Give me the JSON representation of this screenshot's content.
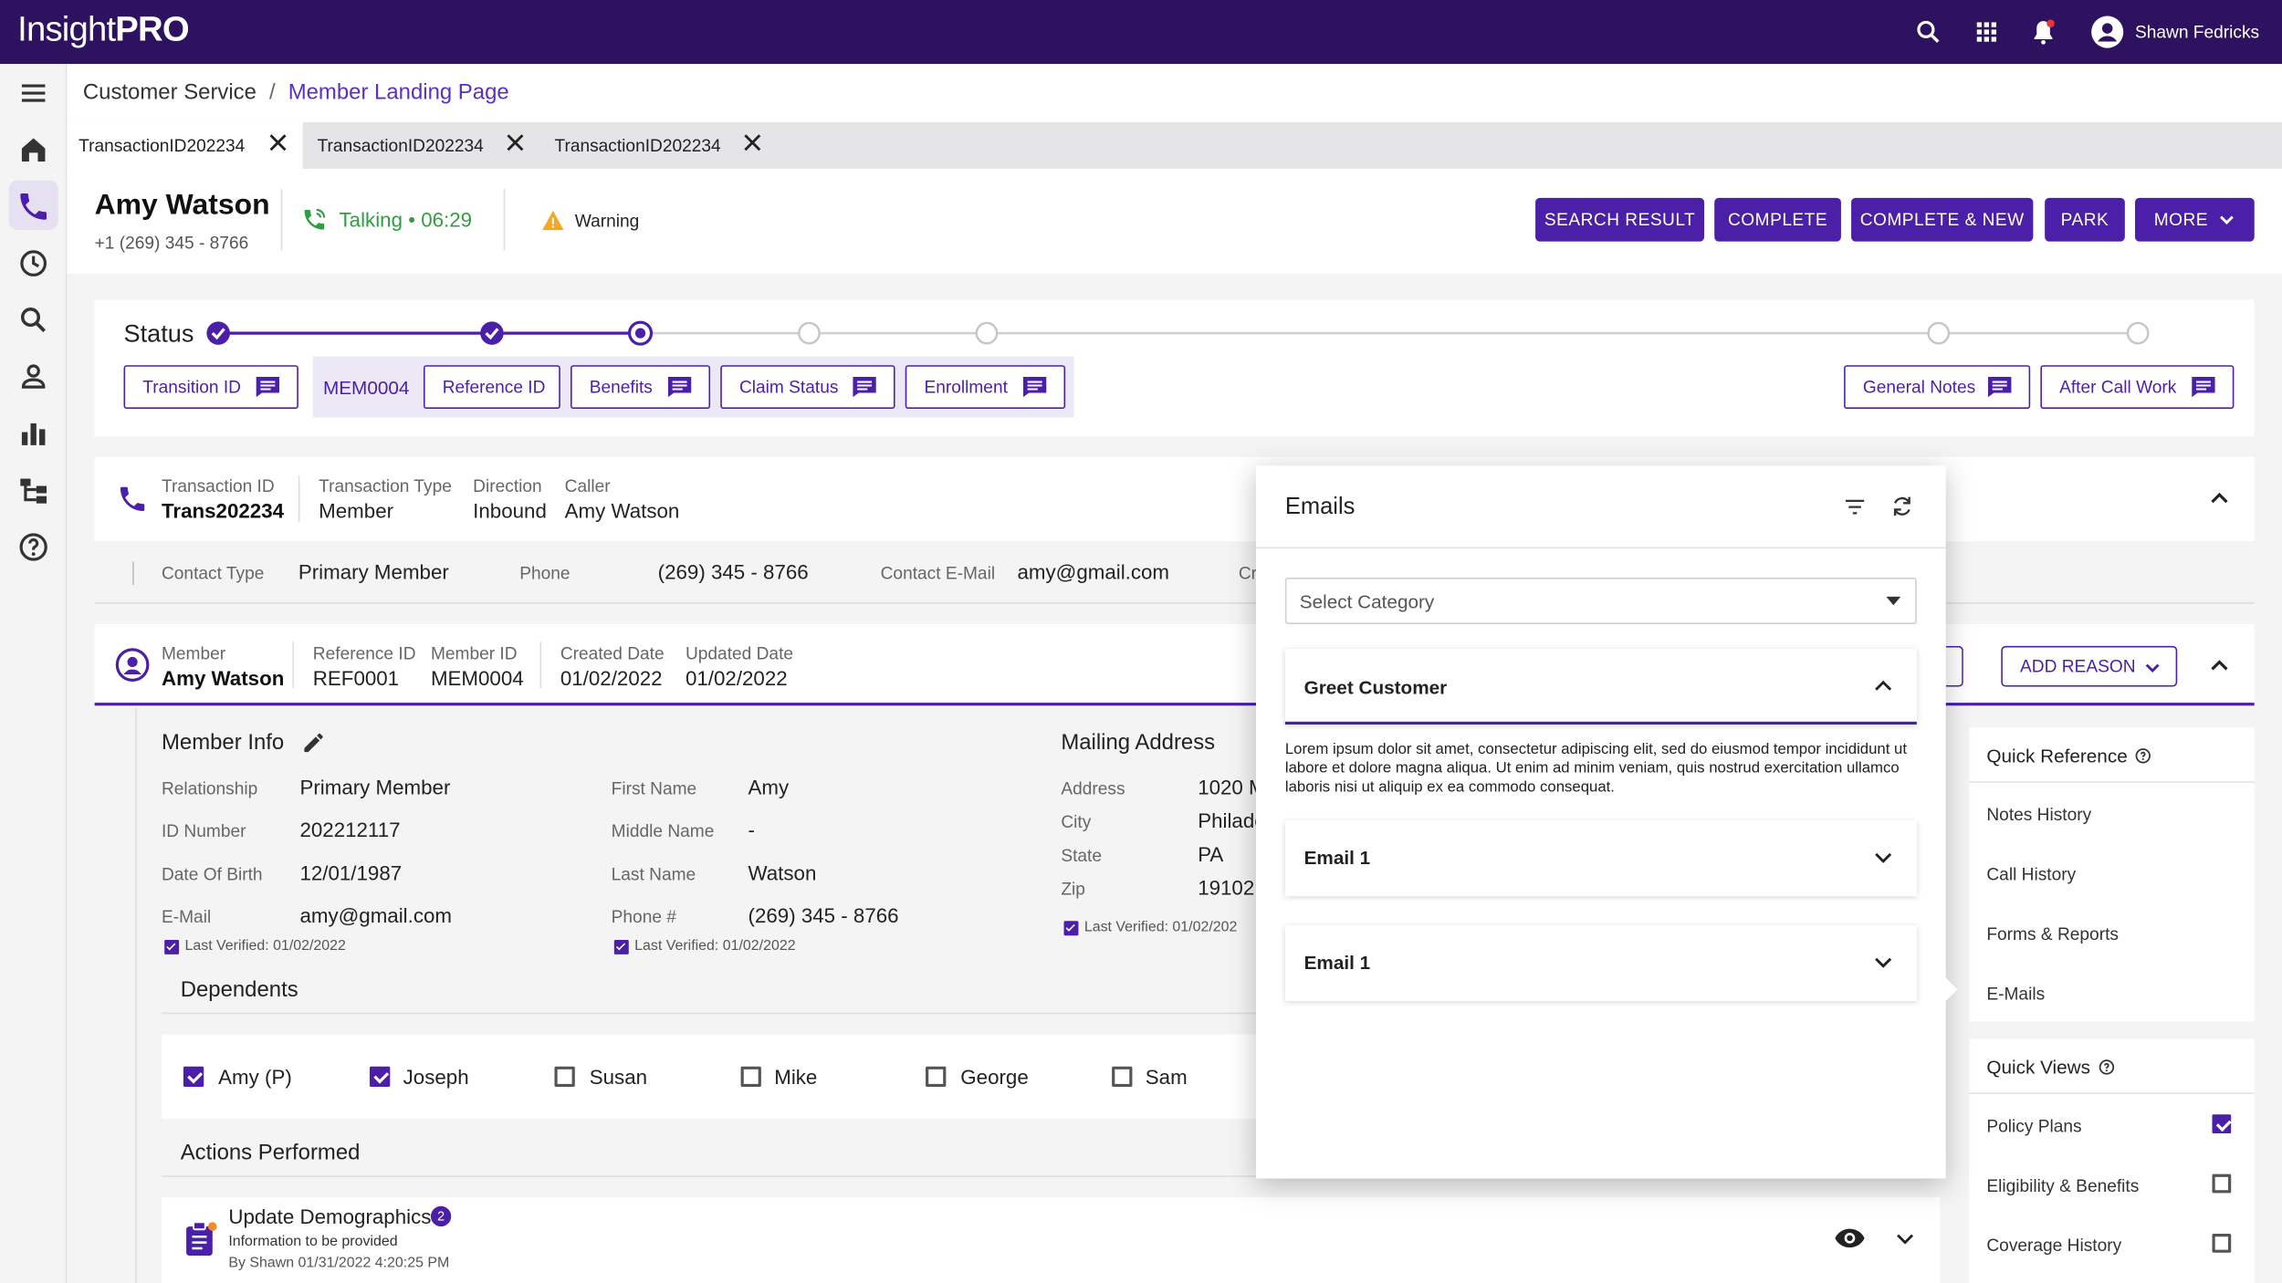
{
  "app": {
    "logo_light": "Insight",
    "logo_bold": "PRO",
    "user": "Shawn Fedricks"
  },
  "breadcrumb": {
    "parent": "Customer Service",
    "sep": "/",
    "current": "Member Landing Page"
  },
  "tabs": [
    {
      "label": "TransactionID202234"
    },
    {
      "label": "TransactionID202234"
    },
    {
      "label": "TransactionID202234"
    }
  ],
  "caller": {
    "name": "Amy Watson",
    "phone": "+1 (269) 345 - 8766",
    "call_status": "Talking",
    "dot": "•",
    "timer": "06:29",
    "warning": "Warning"
  },
  "actions": {
    "search_result": "SEARCH RESULT",
    "complete": "COMPLETE",
    "complete_new": "COMPLETE & NEW",
    "park": "PARK",
    "more": "MORE"
  },
  "status": {
    "title": "Status",
    "member_id": "MEM0004",
    "chips": {
      "transition": "Transition ID",
      "reference": "Reference ID",
      "benefits": "Benefits",
      "claim": "Claim Status",
      "enrollment": "Enrollment",
      "general": "General Notes",
      "after": "After Call Work"
    }
  },
  "transaction": {
    "id_label": "Transaction ID",
    "id_value": "Trans202234",
    "type_label": "Transaction Type",
    "type_value": "Member",
    "dir_label": "Direction",
    "dir_value": "Inbound",
    "caller_label": "Caller",
    "caller_value": "Amy Watson",
    "contact_type_label": "Contact Type",
    "contact_type_value": "Primary Member",
    "phone_label": "Phone",
    "phone_value": "(269) 345 - 8766",
    "email_label": "Contact E-Mail",
    "email_value": "amy@gmail.com",
    "cr_cut": "Cr"
  },
  "member": {
    "label": "Member",
    "name": "Amy Watson",
    "ref_label": "Reference ID",
    "ref_value": "REF0001",
    "mid_label": "Member ID",
    "mid_value": "MEM0004",
    "created_label": "Created Date",
    "created_value": "01/02/2022",
    "updated_label": "Updated Date",
    "updated_value": "01/02/2022",
    "add_reason": "ADD REASON"
  },
  "member_info": {
    "title": "Member Info",
    "relationship_label": "Relationship",
    "relationship_value": "Primary Member",
    "id_label": "ID Number",
    "id_value": "202212117",
    "dob_label": "Date Of Birth",
    "dob_value": "12/01/1987",
    "email_label": "E-Mail",
    "email_value": "amy@gmail.com",
    "verified": "Last Verified: 01/02/2022",
    "first_label": "First Name",
    "first_value": "Amy",
    "middle_label": "Middle Name",
    "middle_value": "-",
    "last_label": "Last Name",
    "last_value": "Watson",
    "phone_label": "Phone #",
    "phone_value": "(269) 345 - 8766"
  },
  "mailing": {
    "title": "Mailing Address",
    "address_label": "Address",
    "address_value": "1020 M",
    "city_label": "City",
    "city_value": "Philade",
    "state_label": "State",
    "state_value": "PA",
    "zip_label": "Zip",
    "zip_value": "19102",
    "verified": "Last Verified: 01/02/202"
  },
  "dependents": {
    "title": "Dependents",
    "items": [
      {
        "name": "Amy (P)",
        "checked": true
      },
      {
        "name": "Joseph",
        "checked": true
      },
      {
        "name": "Susan",
        "checked": false
      },
      {
        "name": "Mike",
        "checked": false
      },
      {
        "name": "George",
        "checked": false
      },
      {
        "name": "Sam",
        "checked": false
      }
    ]
  },
  "actions_performed": {
    "title": "Actions Performed",
    "item_title": "Update Demographics",
    "badge": "2",
    "item_sub": "Information to be provided",
    "item_by": "By Shawn  01/31/2022  4:20:25 PM"
  },
  "emails": {
    "title": "Emails",
    "select_placeholder": "Select Category",
    "greet_title": "Greet Customer",
    "greet_body": "Lorem ipsum dolor sit amet, consectetur adipiscing elit, sed do eiusmod tempor incididunt ut labore et dolore magna aliqua. Ut enim ad minim veniam, quis nostrud exercitation ullamco laboris nisi ut aliquip ex ea commodo consequat.",
    "email1": "Email 1",
    "email2": "Email 1"
  },
  "quick_reference": {
    "title": "Quick Reference",
    "items": [
      "Notes History",
      "Call History",
      "Forms & Reports",
      "E-Mails"
    ]
  },
  "quick_views": {
    "title": "Quick Views",
    "items": [
      {
        "label": "Policy Plans",
        "checked": true
      },
      {
        "label": "Eligibility & Benefits",
        "checked": false
      },
      {
        "label": "Coverage History",
        "checked": false
      }
    ]
  },
  "colors": {
    "brand": "#2e1260",
    "accent": "#4b1fa8",
    "talking": "#2e9f3e",
    "warning": "#f5a623"
  }
}
